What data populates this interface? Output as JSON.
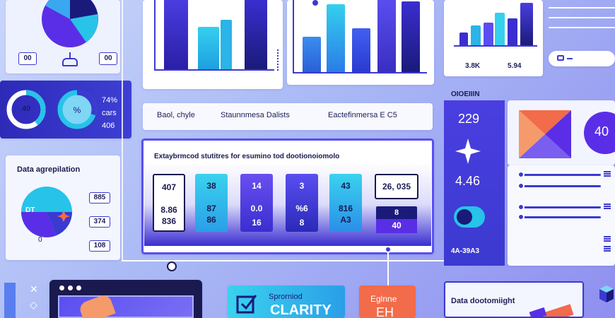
{
  "theme": {
    "accent": "#3b3ad0",
    "violet": "#5a2ee6",
    "cyan": "#27c3e8",
    "orange": "#f26b4a",
    "navy": "#1a1a7a"
  },
  "left_panel": {
    "badge_left": "00",
    "badge_right": "00",
    "donut_value": "40",
    "stat_1": "74%",
    "stat_2": "cars",
    "stat_3": "406",
    "section_title": "Data agrepilation",
    "pie_label": "DT",
    "pie_zero": "0",
    "tag_1": "885",
    "tag_2": "374",
    "tag_3": "108"
  },
  "center_strip": {
    "label_1": "Baol, chyle",
    "label_2": "Staunnmesa Dalists",
    "label_3": "Eactefinmersa E C5"
  },
  "table_panel": {
    "title": "Extaybrmcod stutitres  for esumino tod dootionoiomolo",
    "columns": [
      {
        "top": "407",
        "mid": "8.86",
        "bottom": "836"
      },
      {
        "top": "38",
        "mid": "87",
        "bottom": "86"
      },
      {
        "top": "14",
        "mid": "0.0",
        "bottom": "16"
      },
      {
        "top": "3",
        "mid": "%6",
        "bottom": "8"
      },
      {
        "top": "43",
        "mid": "816",
        "bottom": "A3"
      }
    ],
    "highlight": {
      "top": "26, 035",
      "mid": "8",
      "bottom": "40"
    }
  },
  "right_top": {
    "value_1": "3.8K",
    "value_2": "5.94",
    "search_icon_text": ""
  },
  "right_panel": {
    "header": "OIOEIIIN",
    "big_1": "229",
    "big_2": "4.46",
    "footer": "4A-39A3",
    "circle_value": "40"
  },
  "bottom": {
    "card_1_line_1": "Sprorniod",
    "card_1_line_2": "CLARITY",
    "card_2_line_1": "Eglnne",
    "card_2_line_2": "EH",
    "card_3_title": "Data dootomiight"
  }
}
